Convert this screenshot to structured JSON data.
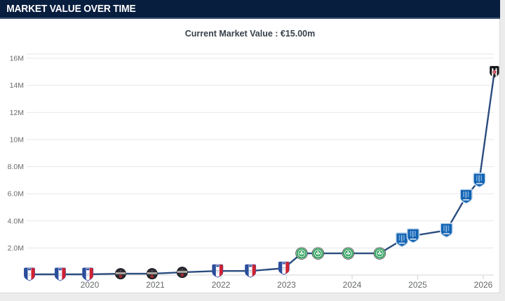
{
  "header": {
    "title": "MARKET VALUE OVER TIME"
  },
  "subtitle": "Current Market Value : €15.00m",
  "colors": {
    "header_bg": "#081e3f",
    "header_text": "#ffffff",
    "subtitle_text": "#37414b",
    "line": "#2b4d7e",
    "grid": "#e7e7e7",
    "axis_line": "#d6d6d6",
    "tick": "#c9d0d6",
    "y_label": "#6b6b6b",
    "x_label": "#66686a",
    "page_edge": "#ececec",
    "badge_tricolor_blue": "#2b4d9b",
    "badge_tricolor_red": "#cf2233",
    "badge_dark": "#2a2b31",
    "badge_dark_red": "#a62b32",
    "badge_green": "#2fa15d",
    "badge_blue": "#1263b2",
    "badge_black": "#15161a",
    "badge_black_red": "#c01f2f"
  },
  "chart_data": {
    "type": "line",
    "title": "Market Value Over Time",
    "subtitle": "Current Market Value : €15.00m",
    "currency": "EUR",
    "unit": "million EUR",
    "grid": true,
    "legend": false,
    "xlim": [
      2019.04,
      2026.25
    ],
    "ylim": [
      0,
      16.3
    ],
    "y_ticks": [
      {
        "label": "16M",
        "value": 16
      },
      {
        "label": "14M",
        "value": 14
      },
      {
        "label": "12M",
        "value": 12
      },
      {
        "label": "10M",
        "value": 10
      },
      {
        "label": "8.0M",
        "value": 8
      },
      {
        "label": "6.0M",
        "value": 6
      },
      {
        "label": "4.0M",
        "value": 4
      },
      {
        "label": "2.0M",
        "value": 2
      }
    ],
    "x_ticks": [
      {
        "label": "2020",
        "year": 2020
      },
      {
        "label": "2021",
        "year": 2021
      },
      {
        "label": "2022",
        "year": 2022
      },
      {
        "label": "2023",
        "year": 2023
      },
      {
        "label": "2024",
        "year": 2024
      },
      {
        "label": "2025",
        "year": 2025
      },
      {
        "label": "2026",
        "year": 2026
      }
    ],
    "points": [
      {
        "year": 2019.08,
        "value_m": 0.05,
        "badge": "tricolor-shield"
      },
      {
        "year": 2019.55,
        "value_m": 0.05,
        "badge": "tricolor-shield"
      },
      {
        "year": 2019.97,
        "value_m": 0.05,
        "badge": "tricolor-shield"
      },
      {
        "year": 2020.47,
        "value_m": 0.1,
        "badge": "dark-round"
      },
      {
        "year": 2020.95,
        "value_m": 0.1,
        "badge": "dark-round"
      },
      {
        "year": 2021.41,
        "value_m": 0.2,
        "badge": "dark-round"
      },
      {
        "year": 2021.95,
        "value_m": 0.3,
        "badge": "tricolor-shield"
      },
      {
        "year": 2022.45,
        "value_m": 0.3,
        "badge": "tricolor-shield"
      },
      {
        "year": 2022.96,
        "value_m": 0.5,
        "badge": "tricolor-shield"
      },
      {
        "year": 2023.23,
        "value_m": 1.6,
        "badge": "green-round"
      },
      {
        "year": 2023.48,
        "value_m": 1.6,
        "badge": "green-round"
      },
      {
        "year": 2023.94,
        "value_m": 1.6,
        "badge": "green-round"
      },
      {
        "year": 2024.42,
        "value_m": 1.6,
        "badge": "green-round"
      },
      {
        "year": 2024.76,
        "value_m": 2.6,
        "badge": "blue-shield"
      },
      {
        "year": 2024.93,
        "value_m": 2.9,
        "badge": "blue-shield"
      },
      {
        "year": 2025.44,
        "value_m": 3.3,
        "badge": "blue-shield"
      },
      {
        "year": 2025.74,
        "value_m": 5.8,
        "badge": "blue-shield"
      },
      {
        "year": 2025.94,
        "value_m": 7.0,
        "badge": "blue-shield"
      },
      {
        "year": 2026.17,
        "value_m": 15.0,
        "badge": "black-shield"
      }
    ]
  }
}
